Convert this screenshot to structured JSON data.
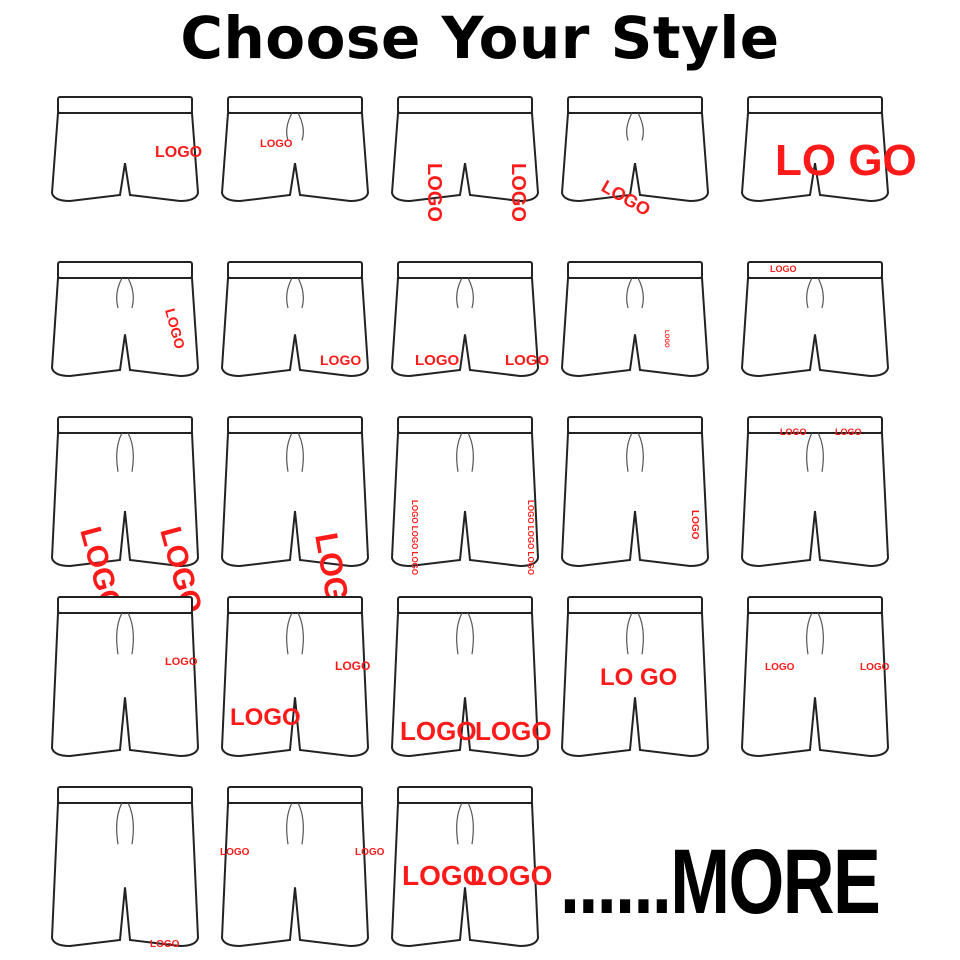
{
  "title": "Choose Your Style",
  "more_label": "......MORE",
  "logo_color": "#ff1a1a",
  "items": [
    {
      "style": "dolphin-short",
      "logos": [
        "LOGO"
      ]
    },
    {
      "style": "dolphin-drawstring",
      "logos": [
        "LOGO"
      ]
    },
    {
      "style": "running-short",
      "logos": [
        "LOGO",
        "LOGO"
      ]
    },
    {
      "style": "curved-hem",
      "logos": [
        "LOGO"
      ]
    },
    {
      "style": "boxy-short",
      "logos": [
        "LO GO"
      ]
    },
    {
      "style": "split-short",
      "logos": [
        "LOGO"
      ]
    },
    {
      "style": "drawstring-short",
      "logos": [
        "LOGO"
      ]
    },
    {
      "style": "volley-short",
      "logos": [
        "LOGO",
        "LOGO"
      ]
    },
    {
      "style": "side-stripe",
      "logos": [
        "LOGO"
      ]
    },
    {
      "style": "retro-short",
      "logos": [
        "LOGO"
      ]
    },
    {
      "style": "basketball-short",
      "logos": [
        "LOGO",
        "LOGO"
      ]
    },
    {
      "style": "athletic-short",
      "logos": [
        "LOGO"
      ]
    },
    {
      "style": "side-print",
      "logos": [
        "LOGO LOGO LOGO",
        "LOGO LOGO LOGO"
      ]
    },
    {
      "style": "gym-short",
      "logos": [
        "LOGO"
      ]
    },
    {
      "style": "waistband-logo",
      "logos": [
        "LOGO",
        "LOGO"
      ]
    },
    {
      "style": "chino-short",
      "logos": [
        "LOGO"
      ]
    },
    {
      "style": "tailored-short",
      "logos": [
        "LOGO",
        "LOGO"
      ]
    },
    {
      "style": "long-short",
      "logos": [
        "LOGO",
        "LOGO"
      ]
    },
    {
      "style": "dress-short",
      "logos": [
        "LO GO"
      ]
    },
    {
      "style": "board-short",
      "logos": [
        "LOGO",
        "LOGO"
      ]
    },
    {
      "style": "2-in-1-short",
      "logos": [
        "LOGO"
      ]
    },
    {
      "style": "cargo-short",
      "logos": [
        "LOGO",
        "LOGO"
      ]
    },
    {
      "style": "mesh-short",
      "logos": [
        "LOGO",
        "LOGO"
      ]
    }
  ]
}
